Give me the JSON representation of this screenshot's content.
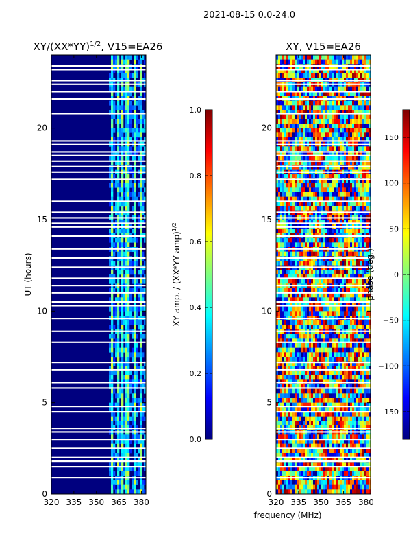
{
  "suptitle": "2021-08-15 0.0-24.0",
  "xlabel": "frequency (MHz)",
  "colors": {
    "jet": [
      "#00007f",
      "#0000ff",
      "#007fff",
      "#00ffff",
      "#7fff7f",
      "#ffff00",
      "#ff7f00",
      "#ff0000",
      "#7f0000"
    ],
    "gap": "#ffffff",
    "axis": "#000000"
  },
  "chart_data": [
    {
      "type": "heatmap",
      "title": "XY/(XX*YY)^1/2, V15=EA26",
      "title_main": "XY/(XX*YY)",
      "title_sup": "1/2",
      "title_suffix": ", V15=EA26",
      "xlabel": "",
      "ylabel": "UT (hours)",
      "xlim": [
        320,
        383
      ],
      "ylim": [
        0,
        24
      ],
      "xticks": [
        "320",
        "335",
        "350",
        "365",
        "380"
      ],
      "yticks": [
        "0",
        "5",
        "10",
        "15",
        "20"
      ],
      "colorbar": {
        "label": "XY amp. / (XX*YY amp)^1/2",
        "label_main": "XY amp. / (XX*YY amp)",
        "label_sup": "1/2",
        "range": [
          0,
          1
        ],
        "ticks": [
          "0.0",
          "0.2",
          "0.4",
          "0.6",
          "0.8",
          "1.0"
        ]
      }
    },
    {
      "type": "heatmap",
      "title": "XY, V15=EA26",
      "xlabel": "frequency (MHz)",
      "ylabel": "",
      "xlim": [
        320,
        383
      ],
      "ylim": [
        0,
        24
      ],
      "xticks": [
        "320",
        "335",
        "350",
        "365",
        "380"
      ],
      "yticks": [
        "0",
        "5",
        "10",
        "15",
        "20"
      ],
      "colorbar": {
        "label": "phase (deg.)",
        "range": [
          -180,
          180
        ],
        "ticks": [
          "−150",
          "−100",
          "−50",
          "0",
          "50",
          "100",
          "150"
        ]
      }
    }
  ],
  "gaps_hours": [
    0.9,
    1.5,
    1.8,
    2.0,
    2.5,
    3.0,
    3.4,
    3.6,
    4.5,
    4.8,
    5.8,
    6.1,
    6.8,
    7.2,
    8.3,
    8.9,
    9.6,
    10.3,
    10.5,
    11.0,
    11.4,
    11.8,
    12.4,
    12.9,
    13.4,
    14.1,
    14.6,
    14.8,
    15.1,
    15.4,
    16.0,
    17.2,
    17.6,
    17.9,
    18.2,
    18.5,
    18.7,
    19.1,
    19.3,
    20.8,
    21.6,
    22.0,
    22.4,
    22.6,
    23.2,
    23.4
  ]
}
